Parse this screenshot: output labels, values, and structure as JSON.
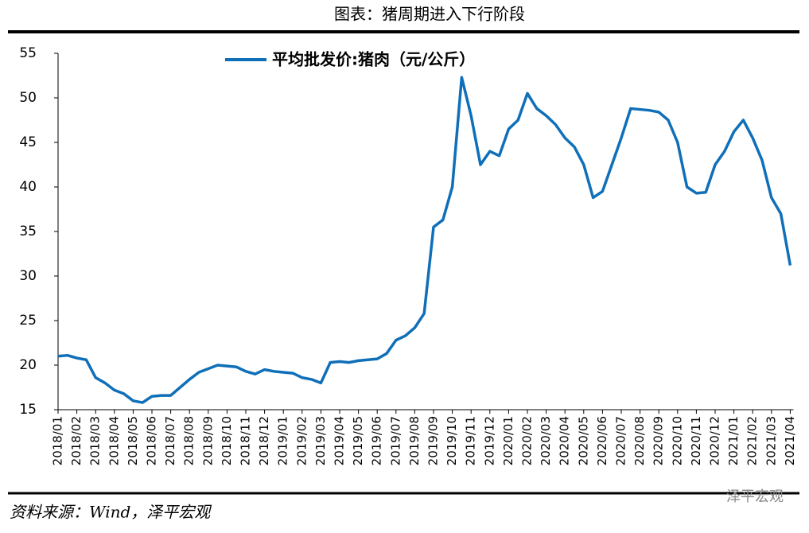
{
  "chart_data": {
    "type": "line",
    "title": "图表：猪周期进入下行阶段",
    "source": "资料来源：Wind，泽平宏观",
    "watermark": "泽平宏观",
    "categories": [
      "2018/01",
      null,
      "2018/02",
      null,
      "2018/03",
      null,
      "2018/04",
      null,
      "2018/05",
      null,
      "2018/06",
      null,
      "2018/07",
      null,
      "2018/08",
      null,
      "2018/09",
      null,
      "2018/10",
      null,
      "2018/11",
      null,
      "2018/12",
      null,
      "2019/01",
      null,
      "2019/02",
      null,
      "2019/03",
      null,
      "2019/04",
      null,
      "2019/05",
      null,
      "2019/06",
      null,
      "2019/07",
      null,
      "2019/08",
      null,
      "2019/09",
      null,
      "2019/10",
      null,
      "2019/11",
      null,
      "2019/12",
      null,
      "2020/01",
      null,
      "2020/02",
      null,
      "2020/03",
      null,
      "2020/04",
      null,
      "2020/05",
      null,
      "2020/06",
      null,
      "2020/07",
      null,
      "2020/08",
      null,
      "2020/09",
      null,
      "2020/10",
      null,
      "2020/11",
      null,
      "2020/12",
      null,
      "2021/01",
      null,
      "2021/02",
      null,
      "2021/03",
      null,
      "2021/04"
    ],
    "series": [
      {
        "name": "平均批发价:猪肉（元/公斤）",
        "color": "#0f6fb8",
        "values": [
          21.0,
          21.1,
          20.8,
          20.6,
          18.6,
          18.0,
          17.2,
          16.8,
          16.0,
          15.8,
          16.5,
          16.6,
          16.6,
          17.5,
          18.4,
          19.2,
          19.6,
          20.0,
          19.9,
          19.8,
          19.3,
          19.0,
          19.5,
          19.3,
          19.2,
          19.1,
          18.6,
          18.4,
          18.0,
          20.3,
          20.4,
          20.3,
          20.5,
          20.6,
          20.7,
          21.3,
          22.8,
          23.3,
          24.2,
          25.8,
          35.5,
          36.3,
          40.0,
          52.3,
          48.0,
          42.5,
          44.0,
          43.5,
          46.5,
          47.5,
          50.5,
          48.8,
          48.0,
          47.0,
          45.5,
          44.5,
          42.5,
          38.8,
          39.5,
          42.5,
          45.5,
          48.8,
          48.7,
          48.6,
          48.4,
          47.5,
          45.0,
          40.0,
          39.3,
          39.4,
          42.5,
          44.0,
          46.2,
          47.5,
          45.5,
          43.0,
          38.8,
          37.0,
          31.2
        ]
      }
    ],
    "ylim": [
      15,
      55
    ],
    "yticks": [
      15,
      20,
      25,
      30,
      35,
      40,
      45,
      50,
      55
    ]
  }
}
